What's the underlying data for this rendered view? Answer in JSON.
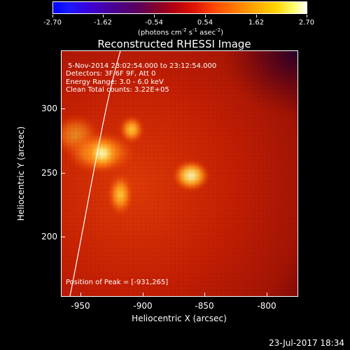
{
  "colorbar": {
    "ticks": [
      "-2.70",
      "-1.62",
      "-0.54",
      "0.54",
      "1.62",
      "2.70"
    ],
    "units_main": "(photons cm",
    "units_exp1": "-2",
    "units_s": " s",
    "units_exp2": "-1",
    "units_asec": " asec",
    "units_exp3": "-2",
    "units_close": ")"
  },
  "plot": {
    "title": "Reconstructed RHESSI Image",
    "info_time": "5-Nov-2014 23:02:54.000 to 23:12:54.000",
    "info_detectors": "Detectors: 3F 6F 9F, Att 0",
    "info_energy": "Energy Range: 3.0 - 6.0 keV",
    "info_clean": "Clean    Total counts: 3.22E+05",
    "peak": "Position of Peak = [-931,265]",
    "y_ticks": [
      "300",
      "250",
      "200"
    ],
    "x_ticks": [
      "-950",
      "-900",
      "-850",
      "-800"
    ],
    "ylabel": "Heliocentric Y (arcsec)",
    "xlabel": "Heliocentric X (arcsec)"
  },
  "footer": {
    "date": "23-Jul-2017 18:34"
  }
}
